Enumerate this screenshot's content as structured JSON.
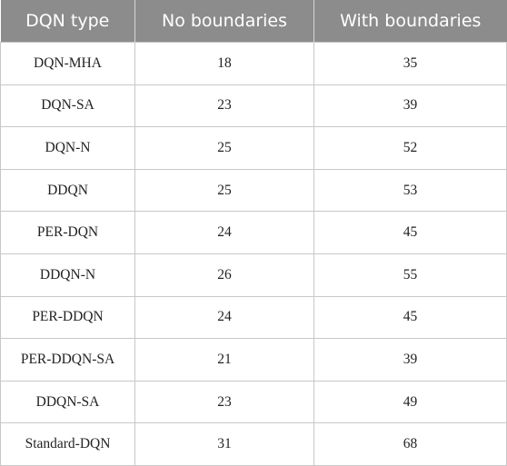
{
  "table": {
    "headers": [
      "DQN type",
      "No boundaries",
      "With boundaries"
    ],
    "rows": [
      [
        "DQN-MHA",
        "18",
        "35"
      ],
      [
        "DQN-SA",
        "23",
        "39"
      ],
      [
        "DQN-N",
        "25",
        "52"
      ],
      [
        "DDQN",
        "25",
        "53"
      ],
      [
        "PER-DQN",
        "24",
        "45"
      ],
      [
        "DDQN-N",
        "26",
        "55"
      ],
      [
        "PER-DDQN",
        "24",
        "45"
      ],
      [
        "PER-DDQN-SA",
        "21",
        "39"
      ],
      [
        "DDQN-SA",
        "23",
        "49"
      ],
      [
        "Standard-DQN",
        "31",
        "68"
      ]
    ]
  },
  "colors": {
    "header_bg": "#8c8c8c",
    "header_text": "#ffffff",
    "border": "#c8c8c8"
  }
}
